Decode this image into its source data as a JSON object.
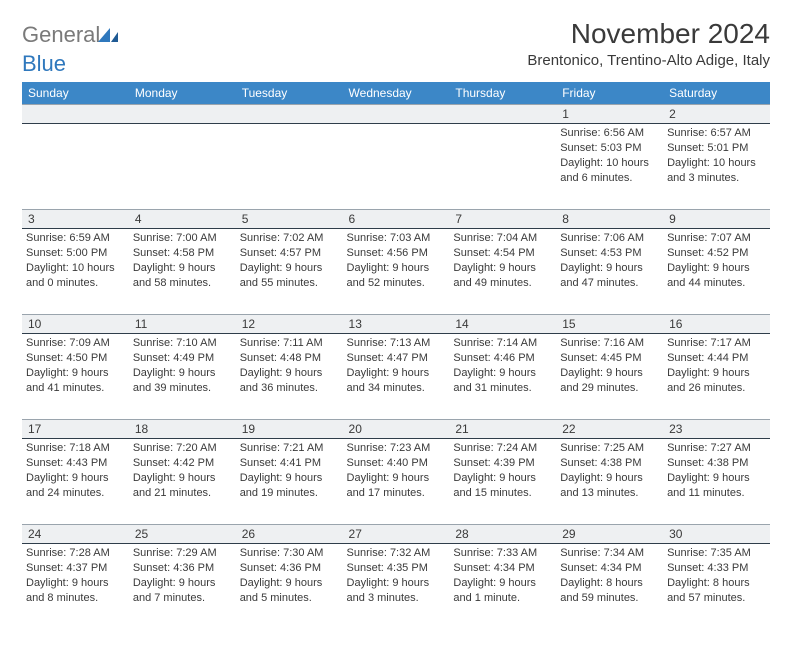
{
  "logo": {
    "general": "General",
    "blue": "Blue"
  },
  "title": "November 2024",
  "location": "Brentonico, Trentino-Alto Adige, Italy",
  "colors": {
    "header_bg": "#3c87c7",
    "header_text": "#ffffff",
    "daynum_bg": "#eef0f2",
    "daynum_border_top": "#9aa4ad",
    "daynum_border_bottom": "#2f3d4a",
    "body_text": "#3a3a3a",
    "logo_gray": "#7a7a7a",
    "logo_blue": "#2f78bd"
  },
  "day_headers": [
    "Sunday",
    "Monday",
    "Tuesday",
    "Wednesday",
    "Thursday",
    "Friday",
    "Saturday"
  ],
  "weeks": [
    [
      {
        "num": "",
        "sunrise": "",
        "sunset": "",
        "daylight": ""
      },
      {
        "num": "",
        "sunrise": "",
        "sunset": "",
        "daylight": ""
      },
      {
        "num": "",
        "sunrise": "",
        "sunset": "",
        "daylight": ""
      },
      {
        "num": "",
        "sunrise": "",
        "sunset": "",
        "daylight": ""
      },
      {
        "num": "",
        "sunrise": "",
        "sunset": "",
        "daylight": ""
      },
      {
        "num": "1",
        "sunrise": "Sunrise: 6:56 AM",
        "sunset": "Sunset: 5:03 PM",
        "daylight": "Daylight: 10 hours and 6 minutes."
      },
      {
        "num": "2",
        "sunrise": "Sunrise: 6:57 AM",
        "sunset": "Sunset: 5:01 PM",
        "daylight": "Daylight: 10 hours and 3 minutes."
      }
    ],
    [
      {
        "num": "3",
        "sunrise": "Sunrise: 6:59 AM",
        "sunset": "Sunset: 5:00 PM",
        "daylight": "Daylight: 10 hours and 0 minutes."
      },
      {
        "num": "4",
        "sunrise": "Sunrise: 7:00 AM",
        "sunset": "Sunset: 4:58 PM",
        "daylight": "Daylight: 9 hours and 58 minutes."
      },
      {
        "num": "5",
        "sunrise": "Sunrise: 7:02 AM",
        "sunset": "Sunset: 4:57 PM",
        "daylight": "Daylight: 9 hours and 55 minutes."
      },
      {
        "num": "6",
        "sunrise": "Sunrise: 7:03 AM",
        "sunset": "Sunset: 4:56 PM",
        "daylight": "Daylight: 9 hours and 52 minutes."
      },
      {
        "num": "7",
        "sunrise": "Sunrise: 7:04 AM",
        "sunset": "Sunset: 4:54 PM",
        "daylight": "Daylight: 9 hours and 49 minutes."
      },
      {
        "num": "8",
        "sunrise": "Sunrise: 7:06 AM",
        "sunset": "Sunset: 4:53 PM",
        "daylight": "Daylight: 9 hours and 47 minutes."
      },
      {
        "num": "9",
        "sunrise": "Sunrise: 7:07 AM",
        "sunset": "Sunset: 4:52 PM",
        "daylight": "Daylight: 9 hours and 44 minutes."
      }
    ],
    [
      {
        "num": "10",
        "sunrise": "Sunrise: 7:09 AM",
        "sunset": "Sunset: 4:50 PM",
        "daylight": "Daylight: 9 hours and 41 minutes."
      },
      {
        "num": "11",
        "sunrise": "Sunrise: 7:10 AM",
        "sunset": "Sunset: 4:49 PM",
        "daylight": "Daylight: 9 hours and 39 minutes."
      },
      {
        "num": "12",
        "sunrise": "Sunrise: 7:11 AM",
        "sunset": "Sunset: 4:48 PM",
        "daylight": "Daylight: 9 hours and 36 minutes."
      },
      {
        "num": "13",
        "sunrise": "Sunrise: 7:13 AM",
        "sunset": "Sunset: 4:47 PM",
        "daylight": "Daylight: 9 hours and 34 minutes."
      },
      {
        "num": "14",
        "sunrise": "Sunrise: 7:14 AM",
        "sunset": "Sunset: 4:46 PM",
        "daylight": "Daylight: 9 hours and 31 minutes."
      },
      {
        "num": "15",
        "sunrise": "Sunrise: 7:16 AM",
        "sunset": "Sunset: 4:45 PM",
        "daylight": "Daylight: 9 hours and 29 minutes."
      },
      {
        "num": "16",
        "sunrise": "Sunrise: 7:17 AM",
        "sunset": "Sunset: 4:44 PM",
        "daylight": "Daylight: 9 hours and 26 minutes."
      }
    ],
    [
      {
        "num": "17",
        "sunrise": "Sunrise: 7:18 AM",
        "sunset": "Sunset: 4:43 PM",
        "daylight": "Daylight: 9 hours and 24 minutes."
      },
      {
        "num": "18",
        "sunrise": "Sunrise: 7:20 AM",
        "sunset": "Sunset: 4:42 PM",
        "daylight": "Daylight: 9 hours and 21 minutes."
      },
      {
        "num": "19",
        "sunrise": "Sunrise: 7:21 AM",
        "sunset": "Sunset: 4:41 PM",
        "daylight": "Daylight: 9 hours and 19 minutes."
      },
      {
        "num": "20",
        "sunrise": "Sunrise: 7:23 AM",
        "sunset": "Sunset: 4:40 PM",
        "daylight": "Daylight: 9 hours and 17 minutes."
      },
      {
        "num": "21",
        "sunrise": "Sunrise: 7:24 AM",
        "sunset": "Sunset: 4:39 PM",
        "daylight": "Daylight: 9 hours and 15 minutes."
      },
      {
        "num": "22",
        "sunrise": "Sunrise: 7:25 AM",
        "sunset": "Sunset: 4:38 PM",
        "daylight": "Daylight: 9 hours and 13 minutes."
      },
      {
        "num": "23",
        "sunrise": "Sunrise: 7:27 AM",
        "sunset": "Sunset: 4:38 PM",
        "daylight": "Daylight: 9 hours and 11 minutes."
      }
    ],
    [
      {
        "num": "24",
        "sunrise": "Sunrise: 7:28 AM",
        "sunset": "Sunset: 4:37 PM",
        "daylight": "Daylight: 9 hours and 8 minutes."
      },
      {
        "num": "25",
        "sunrise": "Sunrise: 7:29 AM",
        "sunset": "Sunset: 4:36 PM",
        "daylight": "Daylight: 9 hours and 7 minutes."
      },
      {
        "num": "26",
        "sunrise": "Sunrise: 7:30 AM",
        "sunset": "Sunset: 4:36 PM",
        "daylight": "Daylight: 9 hours and 5 minutes."
      },
      {
        "num": "27",
        "sunrise": "Sunrise: 7:32 AM",
        "sunset": "Sunset: 4:35 PM",
        "daylight": "Daylight: 9 hours and 3 minutes."
      },
      {
        "num": "28",
        "sunrise": "Sunrise: 7:33 AM",
        "sunset": "Sunset: 4:34 PM",
        "daylight": "Daylight: 9 hours and 1 minute."
      },
      {
        "num": "29",
        "sunrise": "Sunrise: 7:34 AM",
        "sunset": "Sunset: 4:34 PM",
        "daylight": "Daylight: 8 hours and 59 minutes."
      },
      {
        "num": "30",
        "sunrise": "Sunrise: 7:35 AM",
        "sunset": "Sunset: 4:33 PM",
        "daylight": "Daylight: 8 hours and 57 minutes."
      }
    ]
  ]
}
